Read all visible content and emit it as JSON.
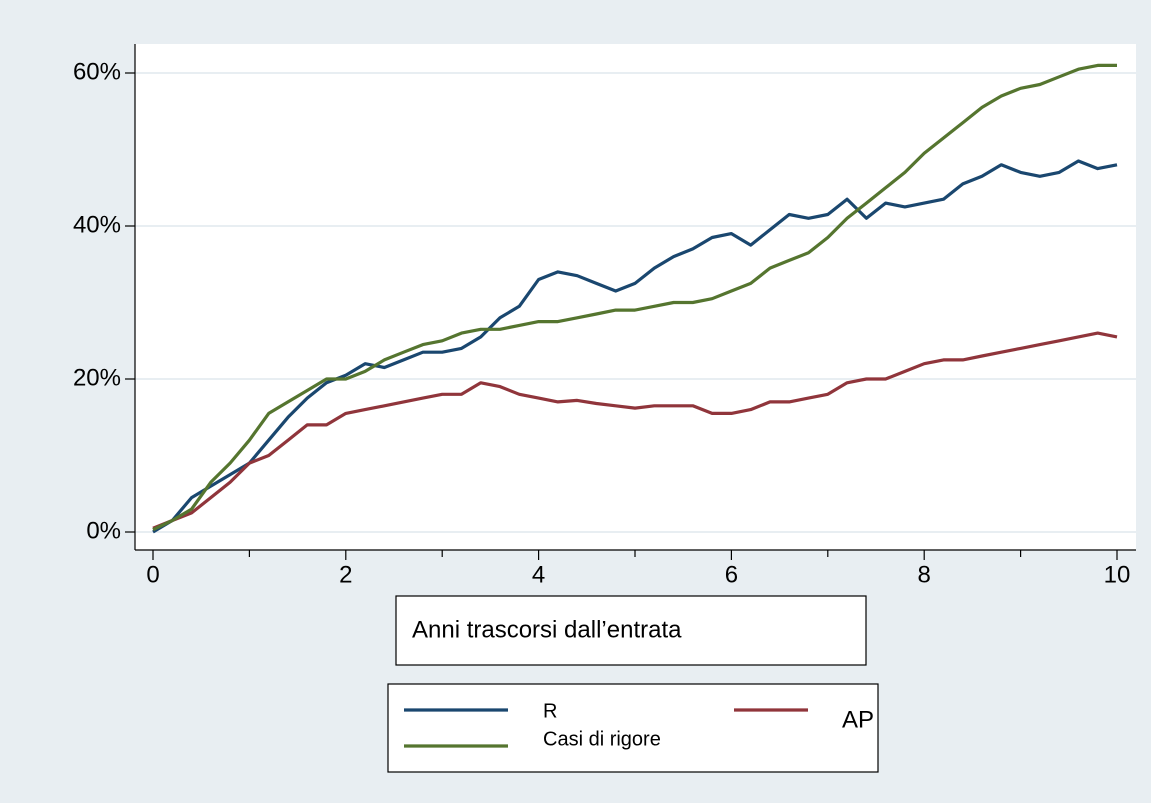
{
  "chart_data": {
    "type": "line",
    "title": "",
    "xlabel": "Anni trascorsi dall’entrata",
    "ylabel": "",
    "xlim": [
      0,
      10
    ],
    "ylim": [
      0,
      0.6
    ],
    "x_ticks": [
      0,
      2,
      4,
      6,
      8,
      10
    ],
    "x_minor_ticks": [
      1,
      3,
      5,
      7,
      9
    ],
    "x_tick_labels": [
      "0",
      "2",
      "4",
      "6",
      "8",
      "10"
    ],
    "y_ticks": [
      0,
      0.2,
      0.4,
      0.6
    ],
    "y_tick_labels": [
      "0%",
      "20%",
      "40%",
      "60%"
    ],
    "grid": true,
    "legend_position": "bottom",
    "colors": {
      "background": "#e8eef2",
      "plot_background": "#ffffff",
      "grid": "#e8eef2"
    },
    "series": [
      {
        "name": "R",
        "color": "#1a476f",
        "points": [
          [
            0,
            0.0
          ],
          [
            0.2,
            0.015
          ],
          [
            0.4,
            0.045
          ],
          [
            0.6,
            0.06
          ],
          [
            0.8,
            0.075
          ],
          [
            1.0,
            0.09
          ],
          [
            1.2,
            0.12
          ],
          [
            1.4,
            0.15
          ],
          [
            1.6,
            0.175
          ],
          [
            1.8,
            0.195
          ],
          [
            2.0,
            0.205
          ],
          [
            2.2,
            0.22
          ],
          [
            2.4,
            0.215
          ],
          [
            2.6,
            0.225
          ],
          [
            2.8,
            0.235
          ],
          [
            3.0,
            0.235
          ],
          [
            3.2,
            0.24
          ],
          [
            3.4,
            0.255
          ],
          [
            3.6,
            0.28
          ],
          [
            3.8,
            0.295
          ],
          [
            4.0,
            0.33
          ],
          [
            4.2,
            0.34
          ],
          [
            4.4,
            0.335
          ],
          [
            4.6,
            0.325
          ],
          [
            4.8,
            0.315
          ],
          [
            5.0,
            0.325
          ],
          [
            5.2,
            0.345
          ],
          [
            5.4,
            0.36
          ],
          [
            5.6,
            0.37
          ],
          [
            5.8,
            0.385
          ],
          [
            6.0,
            0.39
          ],
          [
            6.2,
            0.375
          ],
          [
            6.4,
            0.395
          ],
          [
            6.6,
            0.415
          ],
          [
            6.8,
            0.41
          ],
          [
            7.0,
            0.415
          ],
          [
            7.2,
            0.435
          ],
          [
            7.4,
            0.41
          ],
          [
            7.6,
            0.43
          ],
          [
            7.8,
            0.425
          ],
          [
            8.0,
            0.43
          ],
          [
            8.2,
            0.435
          ],
          [
            8.4,
            0.455
          ],
          [
            8.6,
            0.465
          ],
          [
            8.8,
            0.48
          ],
          [
            9.0,
            0.47
          ],
          [
            9.2,
            0.465
          ],
          [
            9.4,
            0.47
          ],
          [
            9.6,
            0.485
          ],
          [
            9.8,
            0.475
          ],
          [
            10.0,
            0.48
          ]
        ]
      },
      {
        "name": "AP",
        "color": "#90353b",
        "points": [
          [
            0,
            0.005
          ],
          [
            0.2,
            0.015
          ],
          [
            0.4,
            0.025
          ],
          [
            0.6,
            0.045
          ],
          [
            0.8,
            0.065
          ],
          [
            1.0,
            0.09
          ],
          [
            1.2,
            0.1
          ],
          [
            1.4,
            0.12
          ],
          [
            1.6,
            0.14
          ],
          [
            1.8,
            0.14
          ],
          [
            2.0,
            0.155
          ],
          [
            2.2,
            0.16
          ],
          [
            2.4,
            0.165
          ],
          [
            2.6,
            0.17
          ],
          [
            2.8,
            0.175
          ],
          [
            3.0,
            0.18
          ],
          [
            3.2,
            0.18
          ],
          [
            3.4,
            0.195
          ],
          [
            3.6,
            0.19
          ],
          [
            3.8,
            0.18
          ],
          [
            4.0,
            0.175
          ],
          [
            4.2,
            0.17
          ],
          [
            4.4,
            0.172
          ],
          [
            4.6,
            0.168
          ],
          [
            4.8,
            0.165
          ],
          [
            5.0,
            0.162
          ],
          [
            5.2,
            0.165
          ],
          [
            5.4,
            0.165
          ],
          [
            5.6,
            0.165
          ],
          [
            5.8,
            0.155
          ],
          [
            6.0,
            0.155
          ],
          [
            6.2,
            0.16
          ],
          [
            6.4,
            0.17
          ],
          [
            6.6,
            0.17
          ],
          [
            6.8,
            0.175
          ],
          [
            7.0,
            0.18
          ],
          [
            7.2,
            0.195
          ],
          [
            7.4,
            0.2
          ],
          [
            7.6,
            0.2
          ],
          [
            7.8,
            0.21
          ],
          [
            8.0,
            0.22
          ],
          [
            8.2,
            0.225
          ],
          [
            8.4,
            0.225
          ],
          [
            8.6,
            0.23
          ],
          [
            8.8,
            0.235
          ],
          [
            9.0,
            0.24
          ],
          [
            9.2,
            0.245
          ],
          [
            9.4,
            0.25
          ],
          [
            9.6,
            0.255
          ],
          [
            9.8,
            0.26
          ],
          [
            10.0,
            0.255
          ]
        ]
      },
      {
        "name": "Casi di rigore",
        "color": "#55752f",
        "points": [
          [
            0,
            0.003
          ],
          [
            0.2,
            0.015
          ],
          [
            0.4,
            0.03
          ],
          [
            0.6,
            0.065
          ],
          [
            0.8,
            0.09
          ],
          [
            1.0,
            0.12
          ],
          [
            1.2,
            0.155
          ],
          [
            1.4,
            0.17
          ],
          [
            1.6,
            0.185
          ],
          [
            1.8,
            0.2
          ],
          [
            2.0,
            0.2
          ],
          [
            2.2,
            0.21
          ],
          [
            2.4,
            0.225
          ],
          [
            2.6,
            0.235
          ],
          [
            2.8,
            0.245
          ],
          [
            3.0,
            0.25
          ],
          [
            3.2,
            0.26
          ],
          [
            3.4,
            0.265
          ],
          [
            3.6,
            0.265
          ],
          [
            3.8,
            0.27
          ],
          [
            4.0,
            0.275
          ],
          [
            4.2,
            0.275
          ],
          [
            4.4,
            0.28
          ],
          [
            4.6,
            0.285
          ],
          [
            4.8,
            0.29
          ],
          [
            5.0,
            0.29
          ],
          [
            5.2,
            0.295
          ],
          [
            5.4,
            0.3
          ],
          [
            5.6,
            0.3
          ],
          [
            5.8,
            0.305
          ],
          [
            6.0,
            0.315
          ],
          [
            6.2,
            0.325
          ],
          [
            6.4,
            0.345
          ],
          [
            6.6,
            0.355
          ],
          [
            6.8,
            0.365
          ],
          [
            7.0,
            0.385
          ],
          [
            7.2,
            0.41
          ],
          [
            7.4,
            0.43
          ],
          [
            7.6,
            0.45
          ],
          [
            7.8,
            0.47
          ],
          [
            8.0,
            0.495
          ],
          [
            8.2,
            0.515
          ],
          [
            8.4,
            0.535
          ],
          [
            8.6,
            0.555
          ],
          [
            8.8,
            0.57
          ],
          [
            9.0,
            0.58
          ],
          [
            9.2,
            0.585
          ],
          [
            9.4,
            0.595
          ],
          [
            9.6,
            0.605
          ],
          [
            9.8,
            0.61
          ],
          [
            10.0,
            0.61
          ]
        ]
      }
    ]
  }
}
